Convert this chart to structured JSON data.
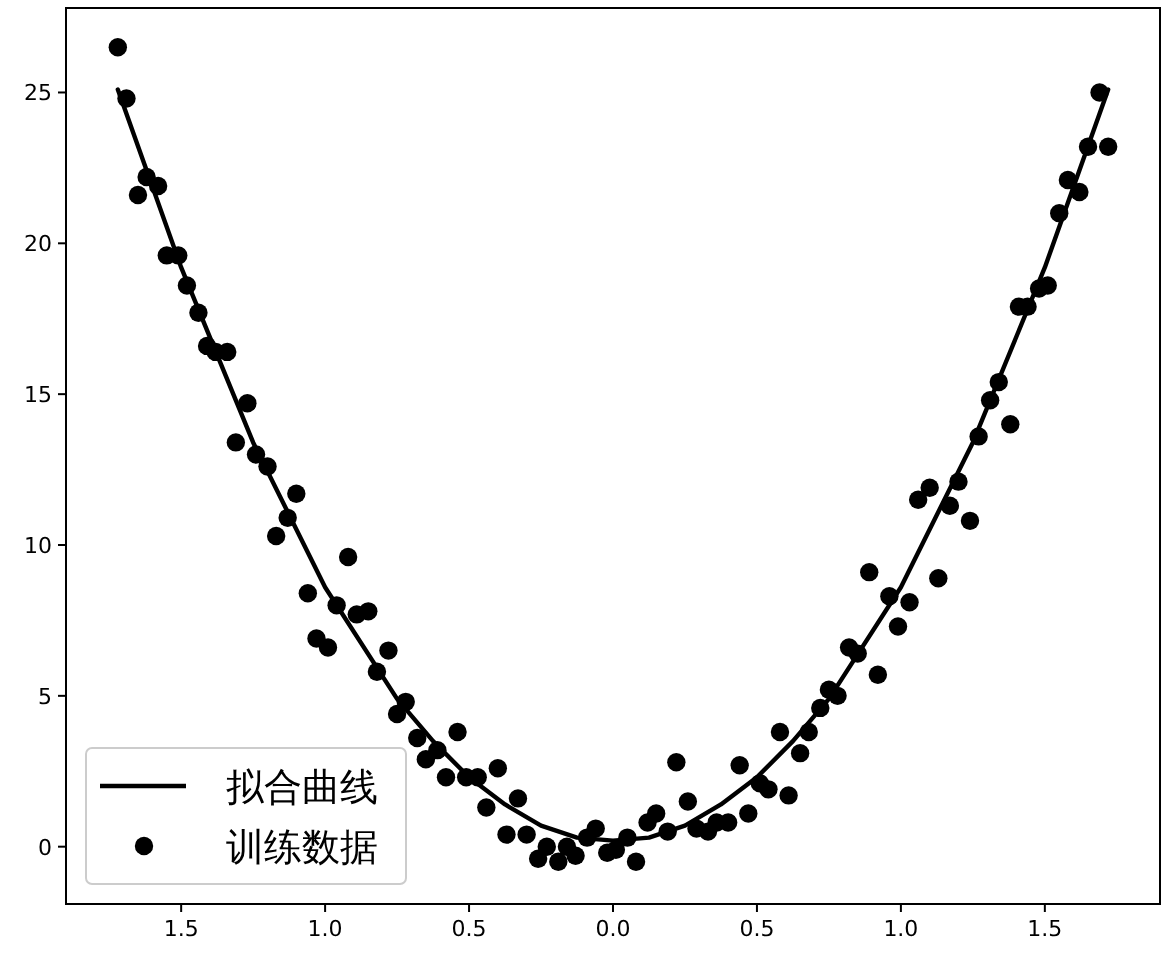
{
  "chart_data": {
    "type": "scatter",
    "xlim": [
      -1.9,
      1.9
    ],
    "ylim": [
      -1.9,
      27.8
    ],
    "xticks": [
      {
        "value": -1.5,
        "label": "1.5"
      },
      {
        "value": -1.0,
        "label": "1.0"
      },
      {
        "value": -0.5,
        "label": "0.5"
      },
      {
        "value": 0,
        "label": "0.0"
      },
      0.5,
      {
        "value": 1,
        "label": "1.0"
      },
      1.5
    ],
    "yticks": [
      0,
      5,
      10,
      15,
      20,
      25
    ],
    "grid": false,
    "legend": "bottom left",
    "series": [
      {
        "name": "拟合曲线",
        "type": "line",
        "color": "#000000",
        "line_style": "solid",
        "x": [
          -1.72,
          -1.5,
          -1.25,
          -1.0,
          -0.75,
          -0.625,
          -0.5,
          -0.375,
          -0.25,
          -0.125,
          0,
          0.125,
          0.25,
          0.375,
          0.5,
          0.625,
          0.75,
          1.0,
          1.25,
          1.5,
          1.72
        ],
        "values": [
          25.1,
          19.2,
          13.4,
          8.6,
          4.9,
          3.5,
          2.3,
          1.4,
          0.7,
          0.3,
          0.2,
          0.3,
          0.7,
          1.4,
          2.3,
          3.5,
          4.9,
          8.6,
          13.4,
          19.2,
          25.1
        ]
      },
      {
        "name": "训练数据",
        "color": "#000000",
        "marker": "circle",
        "x": [
          -1.72,
          -1.69,
          -1.65,
          -1.62,
          -1.58,
          -1.55,
          -1.51,
          -1.48,
          -1.44,
          -1.41,
          -1.38,
          -1.34,
          -1.31,
          -1.27,
          -1.24,
          -1.2,
          -1.17,
          -1.13,
          -1.1,
          -1.06,
          -1.03,
          -0.99,
          -0.96,
          -0.92,
          -0.89,
          -0.85,
          -0.82,
          -0.78,
          -0.75,
          -0.72,
          -0.68,
          -0.65,
          -0.61,
          -0.58,
          -0.54,
          -0.51,
          -0.47,
          -0.44,
          -0.4,
          -0.37,
          -0.33,
          -0.3,
          -0.26,
          -0.23,
          -0.19,
          -0.16,
          -0.13,
          -0.09,
          -0.06,
          -0.02,
          0.01,
          0.05,
          0.08,
          0.12,
          0.15,
          0.19,
          0.22,
          0.26,
          0.29,
          0.33,
          0.36,
          0.4,
          0.44,
          0.47,
          0.51,
          0.54,
          0.58,
          0.61,
          0.65,
          0.68,
          0.72,
          0.75,
          0.78,
          0.82,
          0.85,
          0.89,
          0.92,
          0.96,
          0.99,
          1.03,
          1.06,
          1.1,
          1.13,
          1.17,
          1.2,
          1.24,
          1.27,
          1.31,
          1.34,
          1.38,
          1.41,
          1.44,
          1.48,
          1.51,
          1.55,
          1.58,
          1.62,
          1.65,
          1.69,
          1.72
        ],
        "values": [
          26.5,
          24.8,
          21.6,
          22.2,
          21.9,
          19.6,
          19.6,
          18.6,
          17.7,
          16.6,
          16.4,
          16.4,
          13.4,
          14.7,
          13.0,
          12.6,
          10.3,
          10.9,
          11.7,
          8.4,
          6.9,
          6.6,
          8.0,
          9.6,
          7.7,
          7.8,
          5.8,
          6.5,
          4.4,
          4.8,
          3.6,
          2.9,
          3.2,
          2.3,
          3.8,
          2.3,
          2.3,
          1.3,
          2.6,
          0.4,
          1.6,
          0.4,
          -0.4,
          0.0,
          -0.5,
          0.0,
          -0.3,
          0.3,
          0.6,
          -0.2,
          -0.1,
          0.3,
          -0.5,
          0.8,
          1.1,
          0.5,
          2.8,
          1.5,
          0.6,
          0.5,
          0.8,
          0.8,
          2.7,
          1.1,
          2.1,
          1.9,
          3.8,
          1.7,
          3.1,
          3.8,
          4.6,
          5.2,
          5.0,
          6.6,
          6.4,
          9.1,
          5.7,
          8.3,
          7.3,
          8.1,
          11.5,
          11.9,
          8.9,
          11.3,
          12.1,
          10.8,
          13.6,
          14.8,
          15.4,
          14.0,
          17.9,
          17.9,
          18.5,
          18.6,
          21.0,
          22.1,
          21.7,
          23.2,
          25.0,
          23.2
        ]
      }
    ]
  }
}
